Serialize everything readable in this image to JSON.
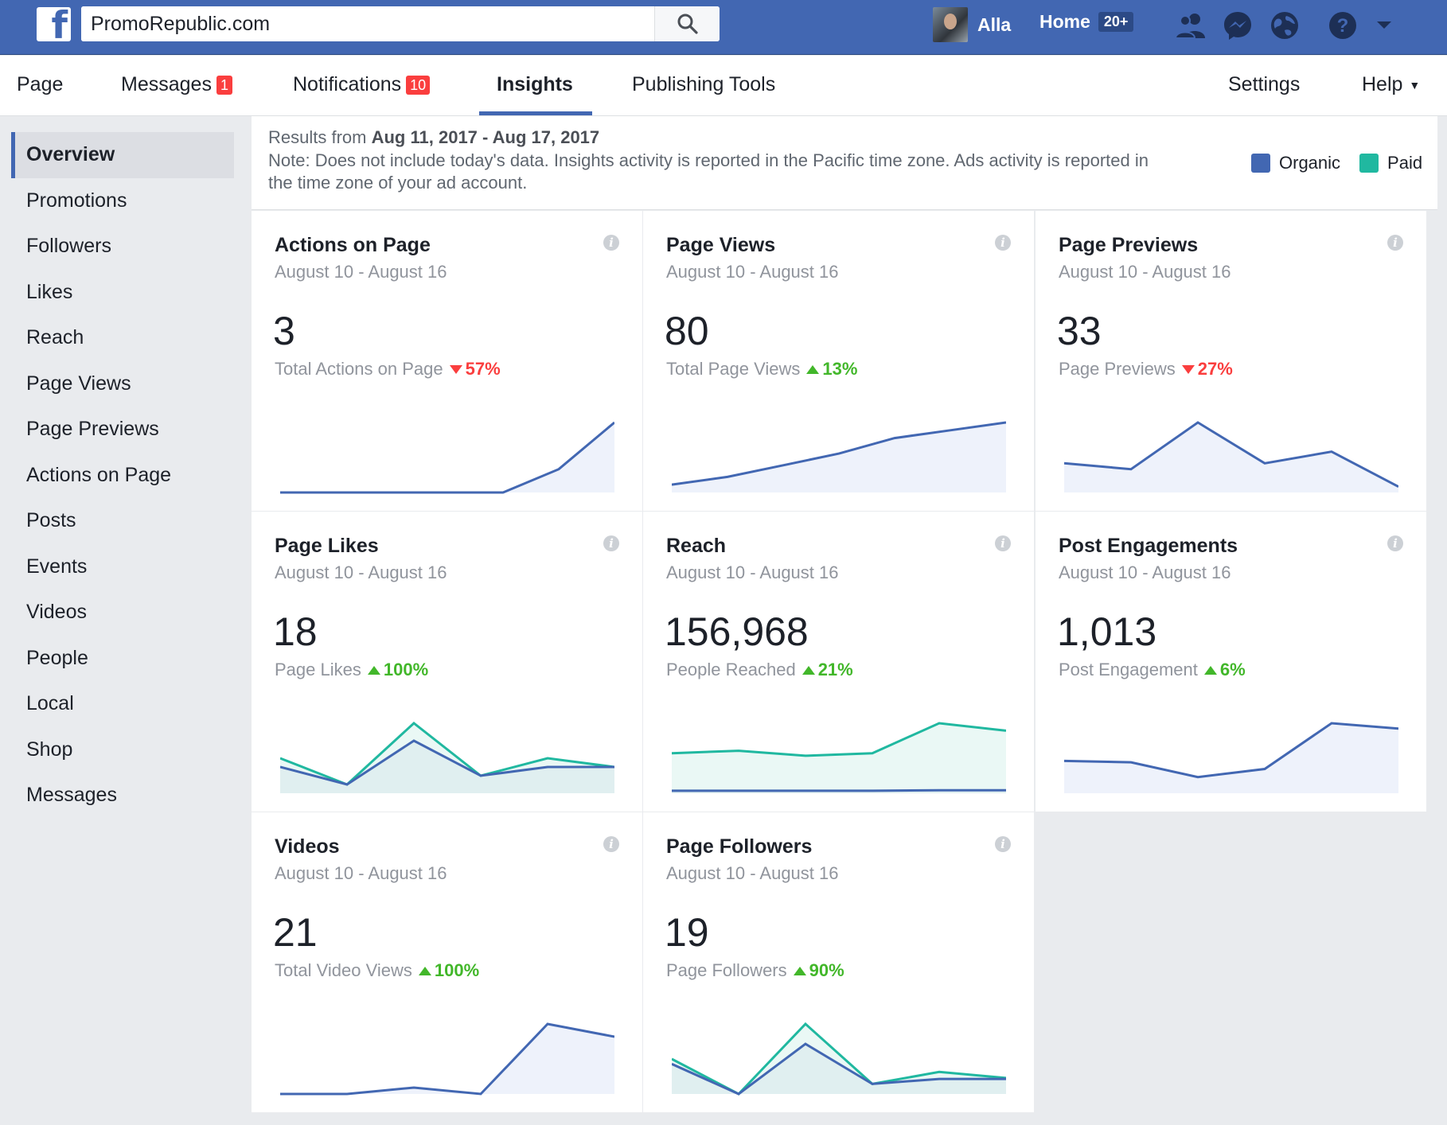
{
  "topbar": {
    "search_value": "PromoRepublic.com",
    "user_name": "Alla",
    "home_label": "Home",
    "home_count": "20+",
    "icons": [
      "facebook-logo",
      "search-icon",
      "friends-icon",
      "messenger-icon",
      "globe-icon",
      "help-icon",
      "chevron-down-icon"
    ]
  },
  "pagenav": {
    "page": "Page",
    "messages": "Messages",
    "messages_badge": "1",
    "notifications": "Notifications",
    "notifications_badge": "10",
    "insights": "Insights",
    "publishing_tools": "Publishing Tools",
    "settings": "Settings",
    "help": "Help"
  },
  "sidebar": {
    "items": [
      "Overview",
      "Promotions",
      "Followers",
      "Likes",
      "Reach",
      "Page Views",
      "Page Previews",
      "Actions on Page",
      "Posts",
      "Events",
      "Videos",
      "People",
      "Local",
      "Shop",
      "Messages"
    ]
  },
  "results": {
    "prefix": "Results from",
    "range": "Aug 11, 2017 - Aug 17, 2017",
    "note": "Note: Does not include today's data. Insights activity is reported in the Pacific time zone. Ads activity is reported in the time zone of your ad account.",
    "legend_organic": "Organic",
    "legend_paid": "Paid",
    "organic_color": "#4267b2",
    "paid_color": "#20b8a0"
  },
  "cards": [
    {
      "title": "Actions on Page",
      "dates": "August 10 - August 16",
      "value": "3",
      "label": "Total Actions on Page",
      "change": "57%",
      "direction": "down",
      "organic": [
        0,
        0,
        0,
        0,
        0,
        1,
        3
      ],
      "paid": null
    },
    {
      "title": "Page Views",
      "dates": "August 10 - August 16",
      "value": "80",
      "label": "Total Page Views",
      "change": "13%",
      "direction": "up",
      "organic": [
        2,
        4,
        7,
        10,
        14,
        16,
        18
      ],
      "paid": null
    },
    {
      "title": "Page Previews",
      "dates": "August 10 - August 16",
      "value": "33",
      "label": "Page Previews",
      "change": "27%",
      "direction": "down",
      "organic": [
        5,
        4,
        12,
        5,
        7,
        1
      ],
      "paid": null
    },
    {
      "title": "Page Likes",
      "dates": "August 10 - August 16",
      "value": "18",
      "label": "Page Likes",
      "change": "100%",
      "direction": "up",
      "organic": [
        3,
        1,
        6,
        2,
        3,
        3
      ],
      "paid": [
        4,
        1,
        8,
        2,
        4,
        3
      ]
    },
    {
      "title": "Reach",
      "dates": "August 10 - August 16",
      "value": "156,968",
      "label": "People Reached",
      "change": "21%",
      "direction": "up",
      "organic": [
        1,
        1,
        1,
        1,
        1.2,
        1.2
      ],
      "paid": [
        16,
        17,
        15,
        16,
        28,
        25
      ]
    },
    {
      "title": "Post Engagements",
      "dates": "August 10 - August 16",
      "value": "1,013",
      "label": "Post Engagement",
      "change": "6%",
      "direction": "up",
      "organic": [
        120,
        115,
        60,
        90,
        260,
        240
      ],
      "paid": null
    },
    {
      "title": "Videos",
      "dates": "August 10 - August 16",
      "value": "21",
      "label": "Total Video Views",
      "change": "100%",
      "direction": "up",
      "organic": [
        0,
        0,
        0.2,
        0,
        2.2,
        1.8
      ],
      "paid": null
    },
    {
      "title": "Page Followers",
      "dates": "August 10 - August 16",
      "value": "19",
      "label": "Page Followers",
      "change": "90%",
      "direction": "up",
      "organic": [
        3,
        0,
        5,
        1,
        1.5,
        1.5
      ],
      "paid": [
        3.5,
        0,
        7,
        1,
        2.2,
        1.6
      ]
    }
  ]
}
